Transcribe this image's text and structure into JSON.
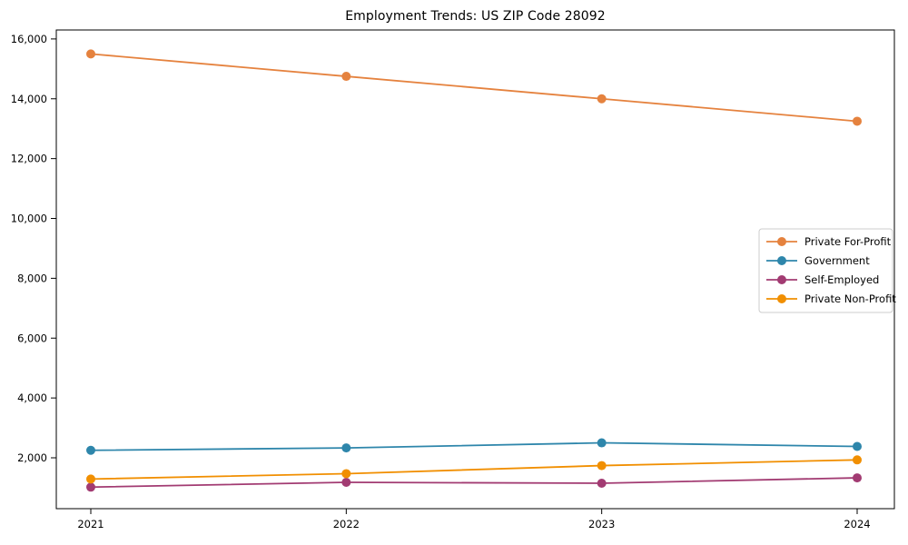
{
  "figure": {
    "background": "#ffffff",
    "text_color": "#000000",
    "spine_color": "#000000",
    "legend_border_color": "#cccccc",
    "legend_background": "#ffffff"
  },
  "chart_data": {
    "type": "line",
    "title": "Employment Trends: US ZIP Code 28092",
    "categories": [
      "2021",
      "2022",
      "2023",
      "2024"
    ],
    "series": [
      {
        "name": "Private For-Profit",
        "color": "#E5823E",
        "values": [
          15500,
          14750,
          14000,
          13250
        ]
      },
      {
        "name": "Government",
        "color": "#2E86AB",
        "values": [
          2250,
          2330,
          2500,
          2380
        ]
      },
      {
        "name": "Self-Employed",
        "color": "#A23B72",
        "values": [
          1020,
          1180,
          1150,
          1330
        ]
      },
      {
        "name": "Private Non-Profit",
        "color": "#F18F01",
        "values": [
          1290,
          1470,
          1740,
          1930
        ]
      }
    ],
    "xlabel": "",
    "ylabel": "",
    "ylim": [
      300,
      16300
    ],
    "yticks": [
      2000,
      4000,
      6000,
      8000,
      10000,
      12000,
      14000,
      16000
    ],
    "grid": false,
    "marker": "circle",
    "legend_position": "center-right"
  }
}
